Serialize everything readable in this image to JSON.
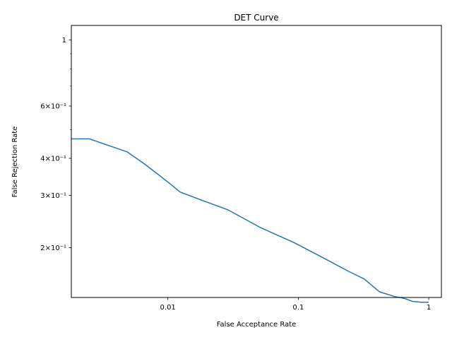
{
  "chart_data": {
    "type": "line",
    "title": "DET Curve",
    "xlabel": "False Acceptance Rate",
    "ylabel": "False Rejection Rate",
    "xscale": "log",
    "yscale": "log",
    "xlim": [
      0.00182,
      1.25
    ],
    "ylim": [
      0.136,
      1.12
    ],
    "grid": false,
    "legend": "none",
    "line_color": "#1f77b4",
    "x_ticks": [
      {
        "value": 0.01,
        "label": "0.01"
      },
      {
        "value": 0.1,
        "label": "0.1"
      },
      {
        "value": 1,
        "label": "1"
      }
    ],
    "y_ticks": [
      {
        "value": 1,
        "label": "1"
      },
      {
        "value": 0.6,
        "label": "6×10⁻¹"
      },
      {
        "value": 0.4,
        "label": "4×10⁻¹"
      },
      {
        "value": 0.3,
        "label": "3×10⁻¹"
      },
      {
        "value": 0.2,
        "label": "2×10⁻¹"
      }
    ],
    "y_minor_ticks": [
      0.9,
      0.8,
      0.7,
      0.5
    ],
    "series": [
      {
        "x": [
          0.00182,
          0.0025,
          0.0049,
          0.0065,
          0.0085,
          0.0107,
          0.0124,
          0.0178,
          0.029,
          0.051,
          0.093,
          0.155,
          0.24,
          0.32,
          0.42,
          0.55,
          0.65,
          0.75,
          0.88,
          1.0
        ],
        "y": [
          0.465,
          0.465,
          0.42,
          0.385,
          0.352,
          0.325,
          0.308,
          0.29,
          0.268,
          0.234,
          0.208,
          0.185,
          0.167,
          0.157,
          0.142,
          0.137,
          0.135,
          0.132,
          0.131,
          0.131
        ]
      }
    ]
  }
}
